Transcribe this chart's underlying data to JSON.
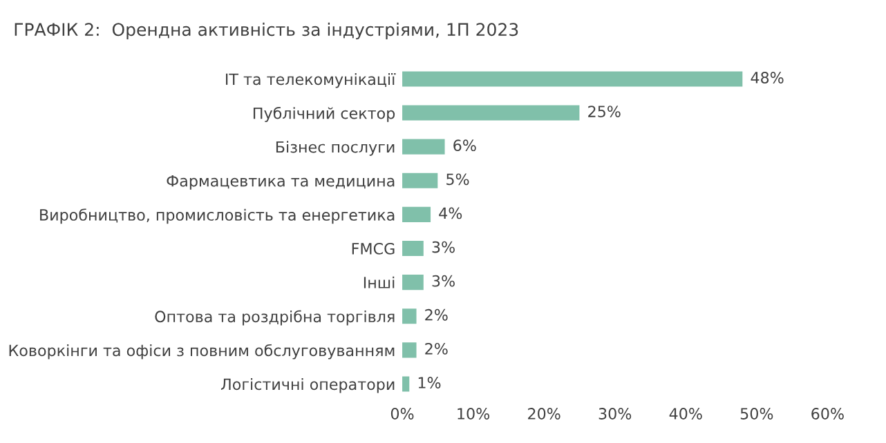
{
  "chart_data": {
    "type": "bar",
    "orientation": "horizontal",
    "title": "ГРАФІК 2:  Орендна активність за індустріями, 1П 2023",
    "categories": [
      "ІТ та телекомунікації",
      "Публічний сектор",
      "Бізнес послуги",
      "Фармацевтика та медицина",
      "Виробництво, промисловість та енергетика",
      "FMCG",
      "Інші",
      "Оптова та роздрібна торгівля",
      "Коворкінги та офіси з повним обслуговуванням",
      "Логістичні оператори"
    ],
    "values": [
      48,
      25,
      6,
      5,
      4,
      3,
      3,
      2,
      2,
      1
    ],
    "value_labels": [
      "48%",
      "25%",
      "6%",
      "5%",
      "4%",
      "3%",
      "3%",
      "2%",
      "2%",
      "1%"
    ],
    "color": "#80c0aa",
    "xlim": [
      0,
      60
    ],
    "xticks": [
      {
        "value": 0,
        "label": "0%"
      },
      {
        "value": 10,
        "label": "10%"
      },
      {
        "value": 20,
        "label": "20%"
      },
      {
        "value": 30,
        "label": "30%"
      },
      {
        "value": 40,
        "label": "40%"
      },
      {
        "value": 50,
        "label": "50%"
      },
      {
        "value": 60,
        "label": "60%"
      }
    ],
    "grid": false,
    "legend": false
  }
}
